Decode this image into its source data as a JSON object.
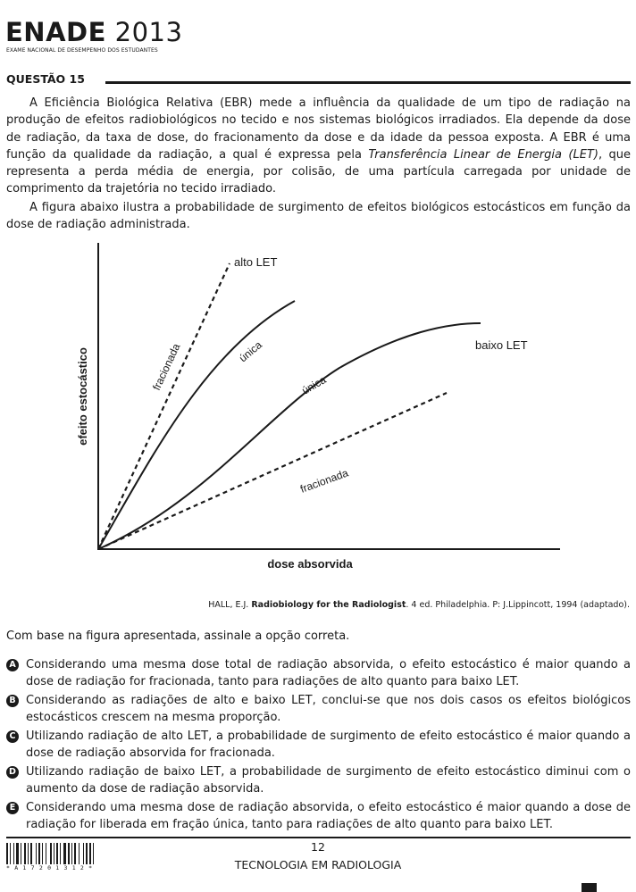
{
  "header": {
    "logo_bold": "ENADE",
    "logo_year": "2013",
    "logo_subtitle": "EXAME NACIONAL DE DESEMPENHO DOS ESTUDANTES"
  },
  "question": {
    "title": "QUESTÃO 15",
    "para1_a": "A Eficiência Biológica Relativa (EBR) mede a influência da qualidade de um tipo de radiação na produção de efeitos radiobiológicos no tecido e nos sistemas biológicos irradiados. Ela depende da dose de radiação, da taxa de dose, do fracionamento da dose e da idade da pessoa exposta. A EBR é uma função da qualidade da radiação, a qual é expressa pela ",
    "para1_italic": "Transferência Linear de Energia (LET)",
    "para1_b": ", que representa a perda média de energia, por colisão, de uma partícula carregada por unidade de comprimento da trajetória no tecido irradiado.",
    "para2": "A figura abaixo ilustra a probabilidade de surgimento de efeitos biológicos estocásticos em função da dose de radiação administrada.",
    "prompt": "Com base na figura apresentada, assinale a opção correta."
  },
  "figure": {
    "ylabel": "efeito estocástico",
    "xlabel": "dose absorvida",
    "label_alto_let": "alto LET",
    "label_baixo_let": "baixo LET",
    "label_fracionada_alto": "fracionada",
    "label_unica_alto": "única",
    "label_unica_baixo": "única",
    "label_fracionada_baixo": "fracionada"
  },
  "citation": {
    "author": "HALL, E.J. ",
    "book": "Radiobiology for the Radiologist",
    "rest": ". 4 ed. Philadelphia. P: J.Lippincott, 1994 (adaptado)."
  },
  "options": [
    {
      "letter": "A",
      "text": "Considerando uma mesma dose total de radiação absorvida, o efeito estocástico é maior quando a dose de radiação for fracionada, tanto para radiações de alto quanto para baixo LET."
    },
    {
      "letter": "B",
      "text": "Considerando as radiações de alto e baixo LET, conclui-se que nos dois casos os efeitos biológicos estocásticos crescem na mesma proporção."
    },
    {
      "letter": "C",
      "text": "Utilizando radiação de alto LET, a probabilidade de surgimento de efeito estocástico é maior quando a dose de radiação absorvida for fracionada."
    },
    {
      "letter": "D",
      "text": "Utilizando radiação de baixo LET, a probabilidade de surgimento de efeito estocástico diminui com o aumento da dose de radiação absorvida."
    },
    {
      "letter": "E",
      "text": "Considerando uma mesma dose de radiação absorvida, o efeito estocástico é maior quando a dose de radiação for liberada em fração única, tanto para radiações de alto quanto para baixo LET."
    }
  ],
  "footer": {
    "barcode_number": "*A17201312*",
    "page_number": "12",
    "course": "TECNOLOGIA EM RADIOLOGIA"
  }
}
